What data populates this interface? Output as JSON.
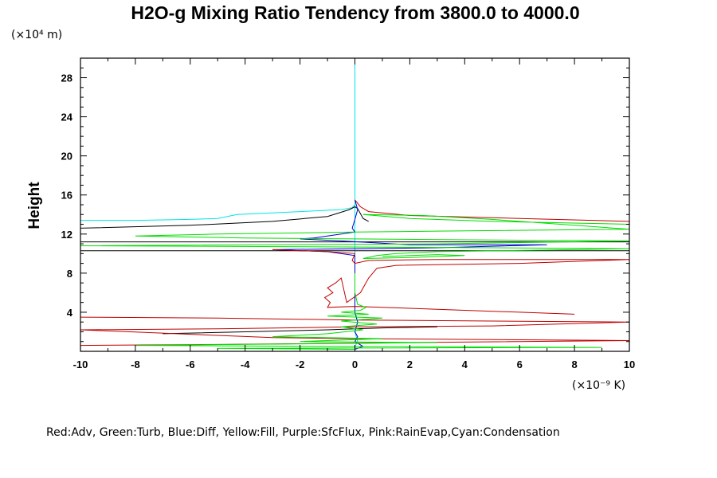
{
  "chart_data": {
    "type": "line",
    "title": "H2O-g Mixing Ratio Tendency from 3800.0 to 4000.0",
    "ylabel": "Height",
    "y_units": "(×10⁴ m)",
    "x_units": "(×10⁻⁹ K)",
    "xlim": [
      -10,
      10
    ],
    "ylim": [
      0,
      30
    ],
    "x_ticks": [
      "-10",
      "-8",
      "-6",
      "-4",
      "-2",
      "0",
      "2",
      "4",
      "6",
      "8",
      "10"
    ],
    "y_ticks": [
      "4",
      "8",
      "12",
      "16",
      "20",
      "24",
      "28"
    ],
    "legend_text": "Red:Adv, Green:Turb, Blue:Diff, Yellow:Fill, Purple:SfcFlux, Pink:RainEvap,Cyan:Condensation",
    "series": [
      {
        "color": "#00e5e5",
        "points": [
          [
            -10,
            13.4
          ],
          [
            -8,
            13.4
          ],
          [
            -6,
            13.5
          ],
          [
            -5,
            13.6
          ],
          [
            -4.3,
            14.0
          ],
          [
            -2,
            14.3
          ],
          [
            -0.5,
            14.5
          ],
          [
            -0.1,
            14.7
          ],
          [
            0,
            15
          ],
          [
            0,
            18
          ],
          [
            0,
            22
          ],
          [
            0,
            26
          ],
          [
            0,
            29.8
          ],
          [
            0,
            29.8
          ],
          [
            0,
            15
          ],
          [
            0,
            11
          ],
          [
            0,
            9
          ],
          [
            0,
            6
          ],
          [
            0,
            4
          ],
          [
            0.1,
            3
          ],
          [
            0,
            2
          ],
          [
            0.1,
            1
          ],
          [
            0,
            0.5
          ],
          [
            0,
            0
          ]
        ]
      },
      {
        "color": "#000000",
        "points": [
          [
            -10,
            12.6
          ],
          [
            -6,
            12.9
          ],
          [
            -3,
            13.3
          ],
          [
            -1,
            13.8
          ],
          [
            -0.2,
            14.5
          ],
          [
            0,
            14.8
          ],
          [
            0.1,
            14.6
          ],
          [
            0.3,
            13.6
          ],
          [
            0.5,
            13.3
          ]
        ]
      },
      {
        "color": "#000000",
        "points": [
          [
            -10,
            11.2
          ],
          [
            10,
            11.2
          ]
        ]
      },
      {
        "color": "#000000",
        "points": [
          [
            -10,
            10.3
          ],
          [
            10,
            10.3
          ]
        ]
      },
      {
        "color": "#000000",
        "points": [
          [
            -7,
            1.8
          ],
          [
            -4,
            2.0
          ],
          [
            -1,
            2.2
          ],
          [
            0,
            2.3
          ],
          [
            1,
            2.4
          ],
          [
            3,
            2.5
          ]
        ]
      },
      {
        "color": "#0000d0",
        "points": [
          [
            0,
            15.5
          ],
          [
            0.1,
            14.5
          ],
          [
            0,
            13.5
          ],
          [
            -0.1,
            12.6
          ],
          [
            0,
            12.2
          ],
          [
            -1.5,
            11.6
          ],
          [
            -2,
            11.5
          ],
          [
            -0.5,
            11.3
          ],
          [
            2,
            10.9
          ],
          [
            7,
            10.9
          ],
          [
            3,
            10.6
          ],
          [
            0,
            10.5
          ],
          [
            -3,
            10.4
          ],
          [
            -1,
            10.2
          ],
          [
            0,
            9.8
          ],
          [
            0,
            8
          ],
          [
            0,
            6
          ],
          [
            0,
            4
          ],
          [
            0.1,
            3
          ],
          [
            0,
            2
          ],
          [
            0.1,
            1.5
          ],
          [
            0,
            1
          ],
          [
            0.3,
            0.5
          ],
          [
            0,
            0.2
          ]
        ]
      },
      {
        "color": "#c00000",
        "points": [
          [
            0,
            15.5
          ],
          [
            0.2,
            14.8
          ],
          [
            0.5,
            14.3
          ],
          [
            2,
            13.9
          ],
          [
            6,
            13.6
          ],
          [
            10,
            13.3
          ]
        ]
      },
      {
        "color": "#c00000",
        "points": [
          [
            -3,
            10.4
          ],
          [
            -1,
            10.2
          ],
          [
            0,
            10.0
          ],
          [
            -0.1,
            9.3
          ],
          [
            0,
            9.0
          ],
          [
            0.5,
            9.3
          ],
          [
            3,
            9.4
          ],
          [
            7,
            9.4
          ],
          [
            10,
            9.4
          ],
          [
            6,
            9.0
          ],
          [
            1.5,
            8.8
          ],
          [
            0.8,
            8.5
          ],
          [
            0.5,
            7.5
          ],
          [
            0.2,
            6.0
          ],
          [
            -0.3,
            5.0
          ],
          [
            -0.5,
            7.5
          ],
          [
            -0.7,
            7.0
          ],
          [
            -1.0,
            6.5
          ],
          [
            -0.8,
            6.0
          ],
          [
            -1.1,
            5.5
          ],
          [
            -0.9,
            5.0
          ],
          [
            -1.0,
            4.5
          ],
          [
            0,
            4.6
          ],
          [
            2,
            4.4
          ],
          [
            4,
            4.2
          ],
          [
            6,
            4.0
          ],
          [
            8,
            3.8
          ]
        ]
      },
      {
        "color": "#c00000",
        "points": [
          [
            -10,
            3.5
          ],
          [
            -5,
            3.4
          ],
          [
            0,
            3.2
          ],
          [
            5,
            3.1
          ],
          [
            10,
            3.0
          ],
          [
            5,
            2.6
          ],
          [
            0,
            2.5
          ],
          [
            -5,
            2.3
          ],
          [
            -10,
            2.2
          ],
          [
            -3,
            1.4
          ],
          [
            0,
            1.3
          ],
          [
            5,
            1.2
          ],
          [
            10,
            1.1
          ],
          [
            2,
            0.9
          ],
          [
            -5,
            0.7
          ],
          [
            -10,
            0.6
          ]
        ]
      },
      {
        "color": "#00dd00",
        "points": [
          [
            10,
            13.0
          ],
          [
            5,
            13.3
          ],
          [
            2,
            13.6
          ],
          [
            0.3,
            14.0
          ],
          [
            2.5,
            13.9
          ],
          [
            5,
            13.5
          ],
          [
            10,
            12.5
          ],
          [
            3,
            12.3
          ],
          [
            0,
            12.2
          ],
          [
            -5,
            12.0
          ],
          [
            -8,
            11.8
          ],
          [
            -4,
            11.6
          ],
          [
            0,
            11.5
          ],
          [
            5,
            11.4
          ],
          [
            10,
            11.3
          ],
          [
            3,
            11.0
          ],
          [
            -10,
            10.8
          ],
          [
            -2,
            10.7
          ],
          [
            5,
            10.6
          ],
          [
            10,
            10.5
          ],
          [
            3,
            10.2
          ],
          [
            1.5,
            10.0
          ],
          [
            0.8,
            9.8
          ],
          [
            0.3,
            9.5
          ],
          [
            2,
            9.6
          ],
          [
            4,
            9.8
          ],
          [
            3,
            9.9
          ],
          [
            1,
            9.7
          ]
        ]
      },
      {
        "color": "#00dd00",
        "points": [
          [
            0,
            8
          ],
          [
            0,
            6
          ],
          [
            0.1,
            4.8
          ],
          [
            0.4,
            4.5
          ],
          [
            0.2,
            4.2
          ],
          [
            -0.5,
            4.0
          ],
          [
            0.5,
            3.8
          ],
          [
            -1,
            3.6
          ],
          [
            1,
            3.4
          ],
          [
            -0.5,
            3.1
          ],
          [
            0.8,
            2.8
          ],
          [
            -0.5,
            2.5
          ],
          [
            0.3,
            2.2
          ],
          [
            -1,
            1.8
          ],
          [
            -3,
            1.5
          ],
          [
            1,
            1.3
          ],
          [
            -2,
            1.0
          ],
          [
            3,
            0.9
          ],
          [
            -8,
            0.6
          ],
          [
            0,
            0.5
          ],
          [
            9,
            0.4
          ],
          [
            -5,
            0.3
          ],
          [
            0,
            0.2
          ]
        ]
      }
    ]
  }
}
